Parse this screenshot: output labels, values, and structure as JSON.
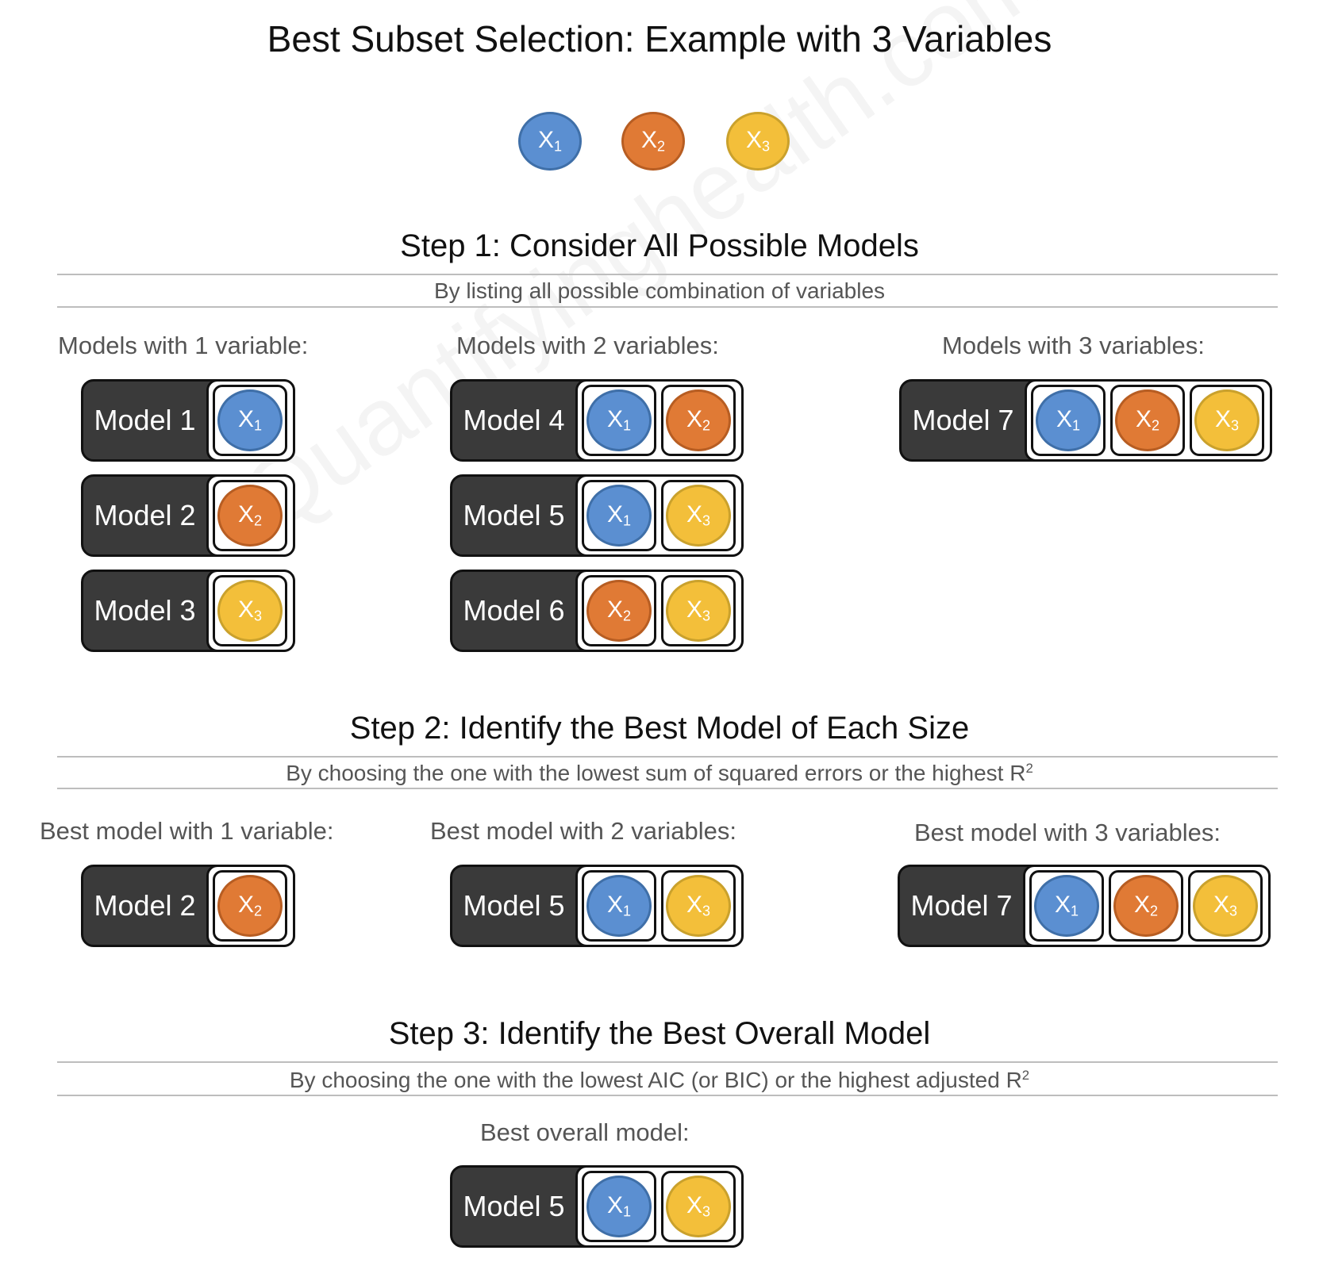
{
  "title": "Best Subset Selection: Example with 3 Variables",
  "variables": {
    "x1": {
      "base": "X",
      "sub": "1",
      "color": "#5b8fd1"
    },
    "x2": {
      "base": "X",
      "sub": "2",
      "color": "#e07a35"
    },
    "x3": {
      "base": "X",
      "sub": "3",
      "color": "#f3bf3a"
    }
  },
  "watermark": "Quantifyinghealth.com",
  "step1": {
    "title": "Step 1: Consider All Possible Models",
    "subtitle": "By listing all possible combination of variables",
    "groups": [
      {
        "label": "Models with 1 variable:",
        "models": [
          {
            "name": "Model 1",
            "vars": [
              "x1"
            ]
          },
          {
            "name": "Model 2",
            "vars": [
              "x2"
            ]
          },
          {
            "name": "Model 3",
            "vars": [
              "x3"
            ]
          }
        ]
      },
      {
        "label": "Models with 2 variables:",
        "models": [
          {
            "name": "Model 4",
            "vars": [
              "x1",
              "x2"
            ]
          },
          {
            "name": "Model 5",
            "vars": [
              "x1",
              "x3"
            ]
          },
          {
            "name": "Model 6",
            "vars": [
              "x2",
              "x3"
            ]
          }
        ]
      },
      {
        "label": "Models with 3 variables:",
        "models": [
          {
            "name": "Model 7",
            "vars": [
              "x1",
              "x2",
              "x3"
            ]
          }
        ]
      }
    ]
  },
  "step2": {
    "title": "Step 2: Identify the Best Model of Each Size",
    "subtitle": "By choosing the one with the lowest sum of squared errors or the highest R",
    "subtitle_sup": "2",
    "groups": [
      {
        "label": "Best model with 1 variable:",
        "models": [
          {
            "name": "Model 2",
            "vars": [
              "x2"
            ]
          }
        ]
      },
      {
        "label": "Best model with 2 variables:",
        "models": [
          {
            "name": "Model 5",
            "vars": [
              "x1",
              "x3"
            ]
          }
        ]
      },
      {
        "label": "Best model with 3 variables:",
        "models": [
          {
            "name": "Model 7",
            "vars": [
              "x1",
              "x2",
              "x3"
            ]
          }
        ]
      }
    ]
  },
  "step3": {
    "title": "Step 3: Identify the Best Overall Model",
    "subtitle": "By choosing the one with the lowest AIC (or BIC) or the highest adjusted R",
    "subtitle_sup": "2",
    "groups": [
      {
        "label": "Best overall model:",
        "models": [
          {
            "name": "Model 5",
            "vars": [
              "x1",
              "x3"
            ]
          }
        ]
      }
    ]
  }
}
